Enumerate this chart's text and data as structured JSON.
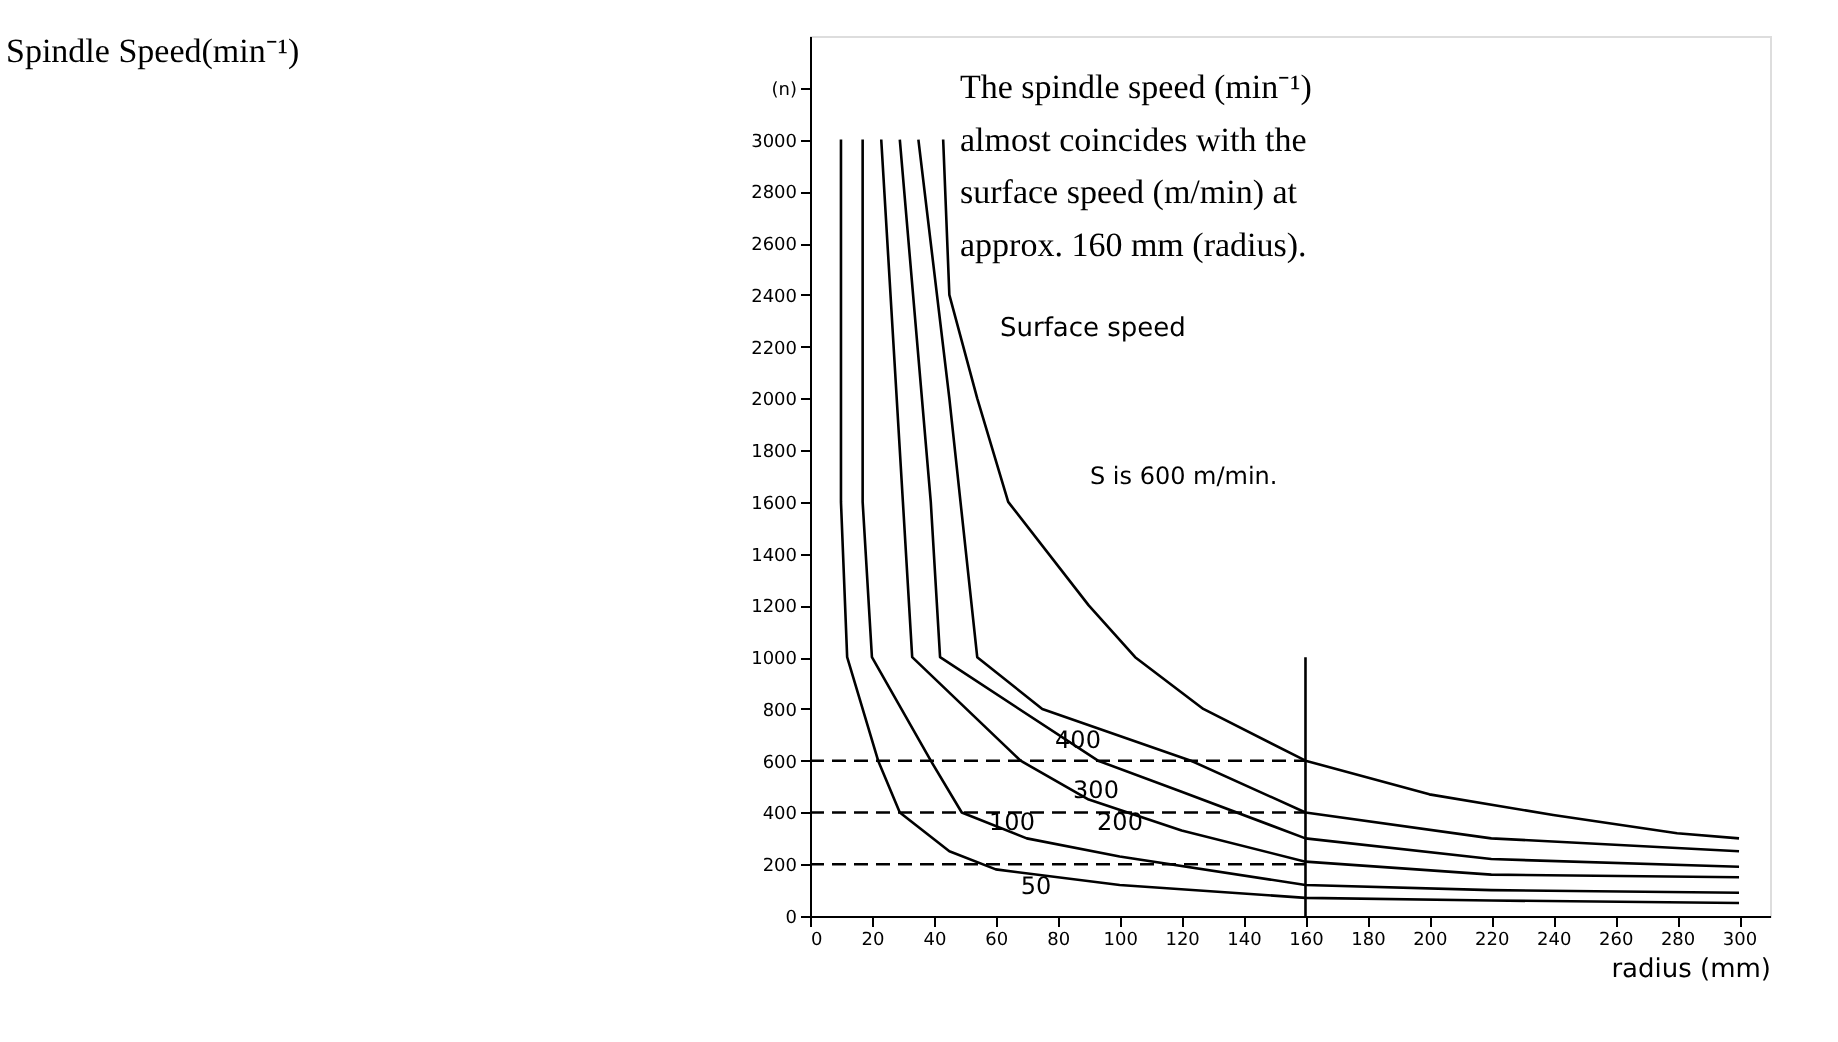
{
  "chart_data": {
    "type": "line",
    "title": "Spindle Speed(min⁻¹)",
    "xlabel": "radius (mm)",
    "xlim": [
      0,
      310
    ],
    "xticks": [
      0,
      20,
      40,
      60,
      80,
      100,
      120,
      140,
      160,
      180,
      200,
      220,
      240,
      260,
      280,
      300
    ],
    "ylim": [
      0,
      3400
    ],
    "yticks": [
      0,
      200,
      400,
      600,
      800,
      1000,
      1200,
      1400,
      1600,
      1800,
      2000,
      2200,
      2400,
      2600,
      2800,
      3000,
      {
        "value": 3200,
        "label": "(n)"
      }
    ],
    "grid": false,
    "marker": "none",
    "series": [
      {
        "color": "#000000",
        "x": [
          10,
          10,
          12,
          22,
          29,
          45,
          60,
          100,
          160,
          220,
          300
        ],
        "values": [
          3000,
          1600,
          1000,
          600,
          400,
          250,
          180,
          120,
          70,
          60,
          50
        ]
      },
      {
        "color": "#000000",
        "x": [
          17,
          17,
          20,
          39,
          49,
          70,
          100,
          160,
          220,
          300
        ],
        "values": [
          3000,
          1600,
          1000,
          600,
          400,
          300,
          230,
          120,
          100,
          90
        ]
      },
      {
        "color": "#000000",
        "x": [
          23,
          30,
          33,
          68,
          90,
          120,
          160,
          220,
          300
        ],
        "values": [
          3000,
          1600,
          1000,
          600,
          450,
          330,
          210,
          160,
          150
        ]
      },
      {
        "color": "#000000",
        "x": [
          29,
          39,
          42,
          93,
          120,
          160,
          220,
          300
        ],
        "values": [
          3000,
          1600,
          1000,
          600,
          480,
          300,
          220,
          190
        ]
      },
      {
        "color": "#000000",
        "x": [
          35,
          45,
          54,
          75,
          123,
          160,
          220,
          300
        ],
        "values": [
          3000,
          2000,
          1000,
          800,
          600,
          400,
          300,
          250
        ]
      },
      {
        "color": "#000000",
        "x": [
          43,
          45,
          54,
          64,
          90,
          105,
          127,
          160,
          200,
          240,
          280,
          300
        ],
        "values": [
          3000,
          2400,
          2000,
          1600,
          1200,
          1000,
          800,
          600,
          470,
          390,
          320,
          300
        ]
      },
      {
        "color": "#000000",
        "line_style": "dashed",
        "x": [
          0,
          160
        ],
        "values": [
          600,
          600
        ]
      },
      {
        "color": "#000000",
        "line_style": "dashed",
        "x": [
          0,
          160
        ],
        "values": [
          400,
          400
        ]
      },
      {
        "color": "#000000",
        "line_style": "dashed",
        "x": [
          0,
          160
        ],
        "values": [
          200,
          200
        ]
      },
      {
        "color": "#000000",
        "x": [
          160,
          160
        ],
        "values": [
          0,
          1000
        ]
      }
    ],
    "annotations": [
      "The spindle speed (min⁻¹) almost coincides with the surface speed (m/min) at approx. 160 mm (radius).",
      "Surface speed",
      "S is 600 m/min.",
      "400",
      "300",
      "100",
      "200",
      "50"
    ]
  }
}
